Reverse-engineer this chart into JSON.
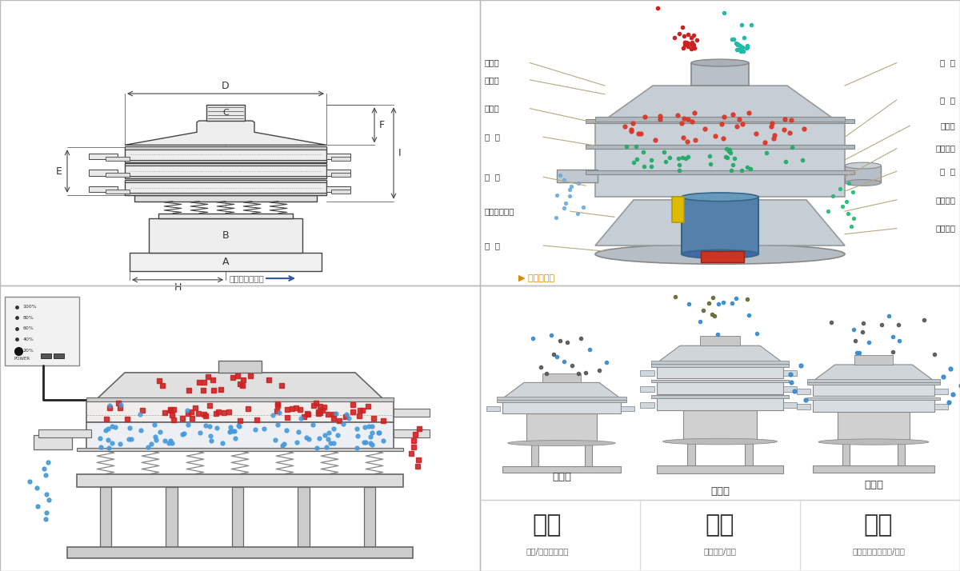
{
  "bg_color": "#ffffff",
  "border_color": "#cccccc",
  "line_color": "#b8a882",
  "nav_left": "外形尺寸示意图",
  "nav_right": "结构示意图",
  "left_labels": [
    "进料口",
    "防尘盖",
    "出料口",
    "束  环",
    "弹  簧",
    "运输固定螺栓",
    "机  座"
  ],
  "right_labels": [
    "筛  网",
    "网  架",
    "加重块",
    "上部重锤",
    "筛  盘",
    "振动电机",
    "下部重锤"
  ],
  "bottom_left_title": "分级",
  "bottom_mid_title": "过滤",
  "bottom_right_title": "除杂",
  "bottom_left_sub": "颗粒/粉末准确分级",
  "bottom_mid_sub": "去除异物/结块",
  "bottom_right_sub": "去除液体中的颗粒/异物",
  "single_label": "单层式",
  "triple_label": "三层式",
  "double_label": "双层式"
}
